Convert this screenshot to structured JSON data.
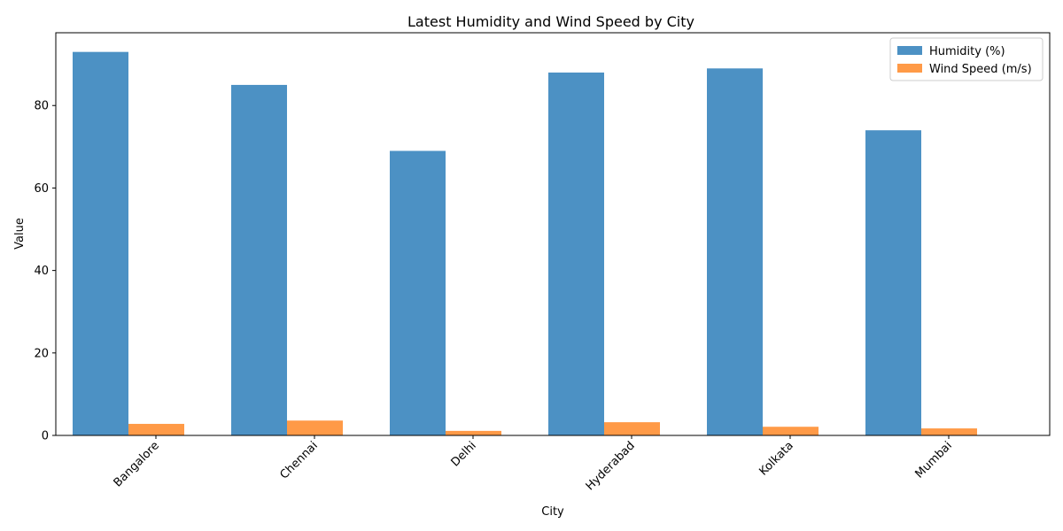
{
  "chart_data": {
    "type": "bar",
    "title": "Latest Humidity and Wind Speed by City",
    "xlabel": "City",
    "ylabel": "Value",
    "categories": [
      "Bangalore",
      "Chennai",
      "Delhi",
      "Hyderabad",
      "Kolkata",
      "Mumbai"
    ],
    "series": [
      {
        "name": "Humidity (%)",
        "color": "#4c91c4",
        "values": [
          93,
          85,
          69,
          88,
          89,
          74
        ]
      },
      {
        "name": "Wind Speed (m/s)",
        "color": "#ff9a47",
        "values": [
          2.8,
          3.6,
          1.1,
          3.2,
          2.1,
          1.7
        ]
      }
    ],
    "ylim": [
      0,
      97.65
    ],
    "yticks": [
      0,
      20,
      40,
      60,
      80
    ],
    "grid": false,
    "legend_position": "top-right"
  }
}
